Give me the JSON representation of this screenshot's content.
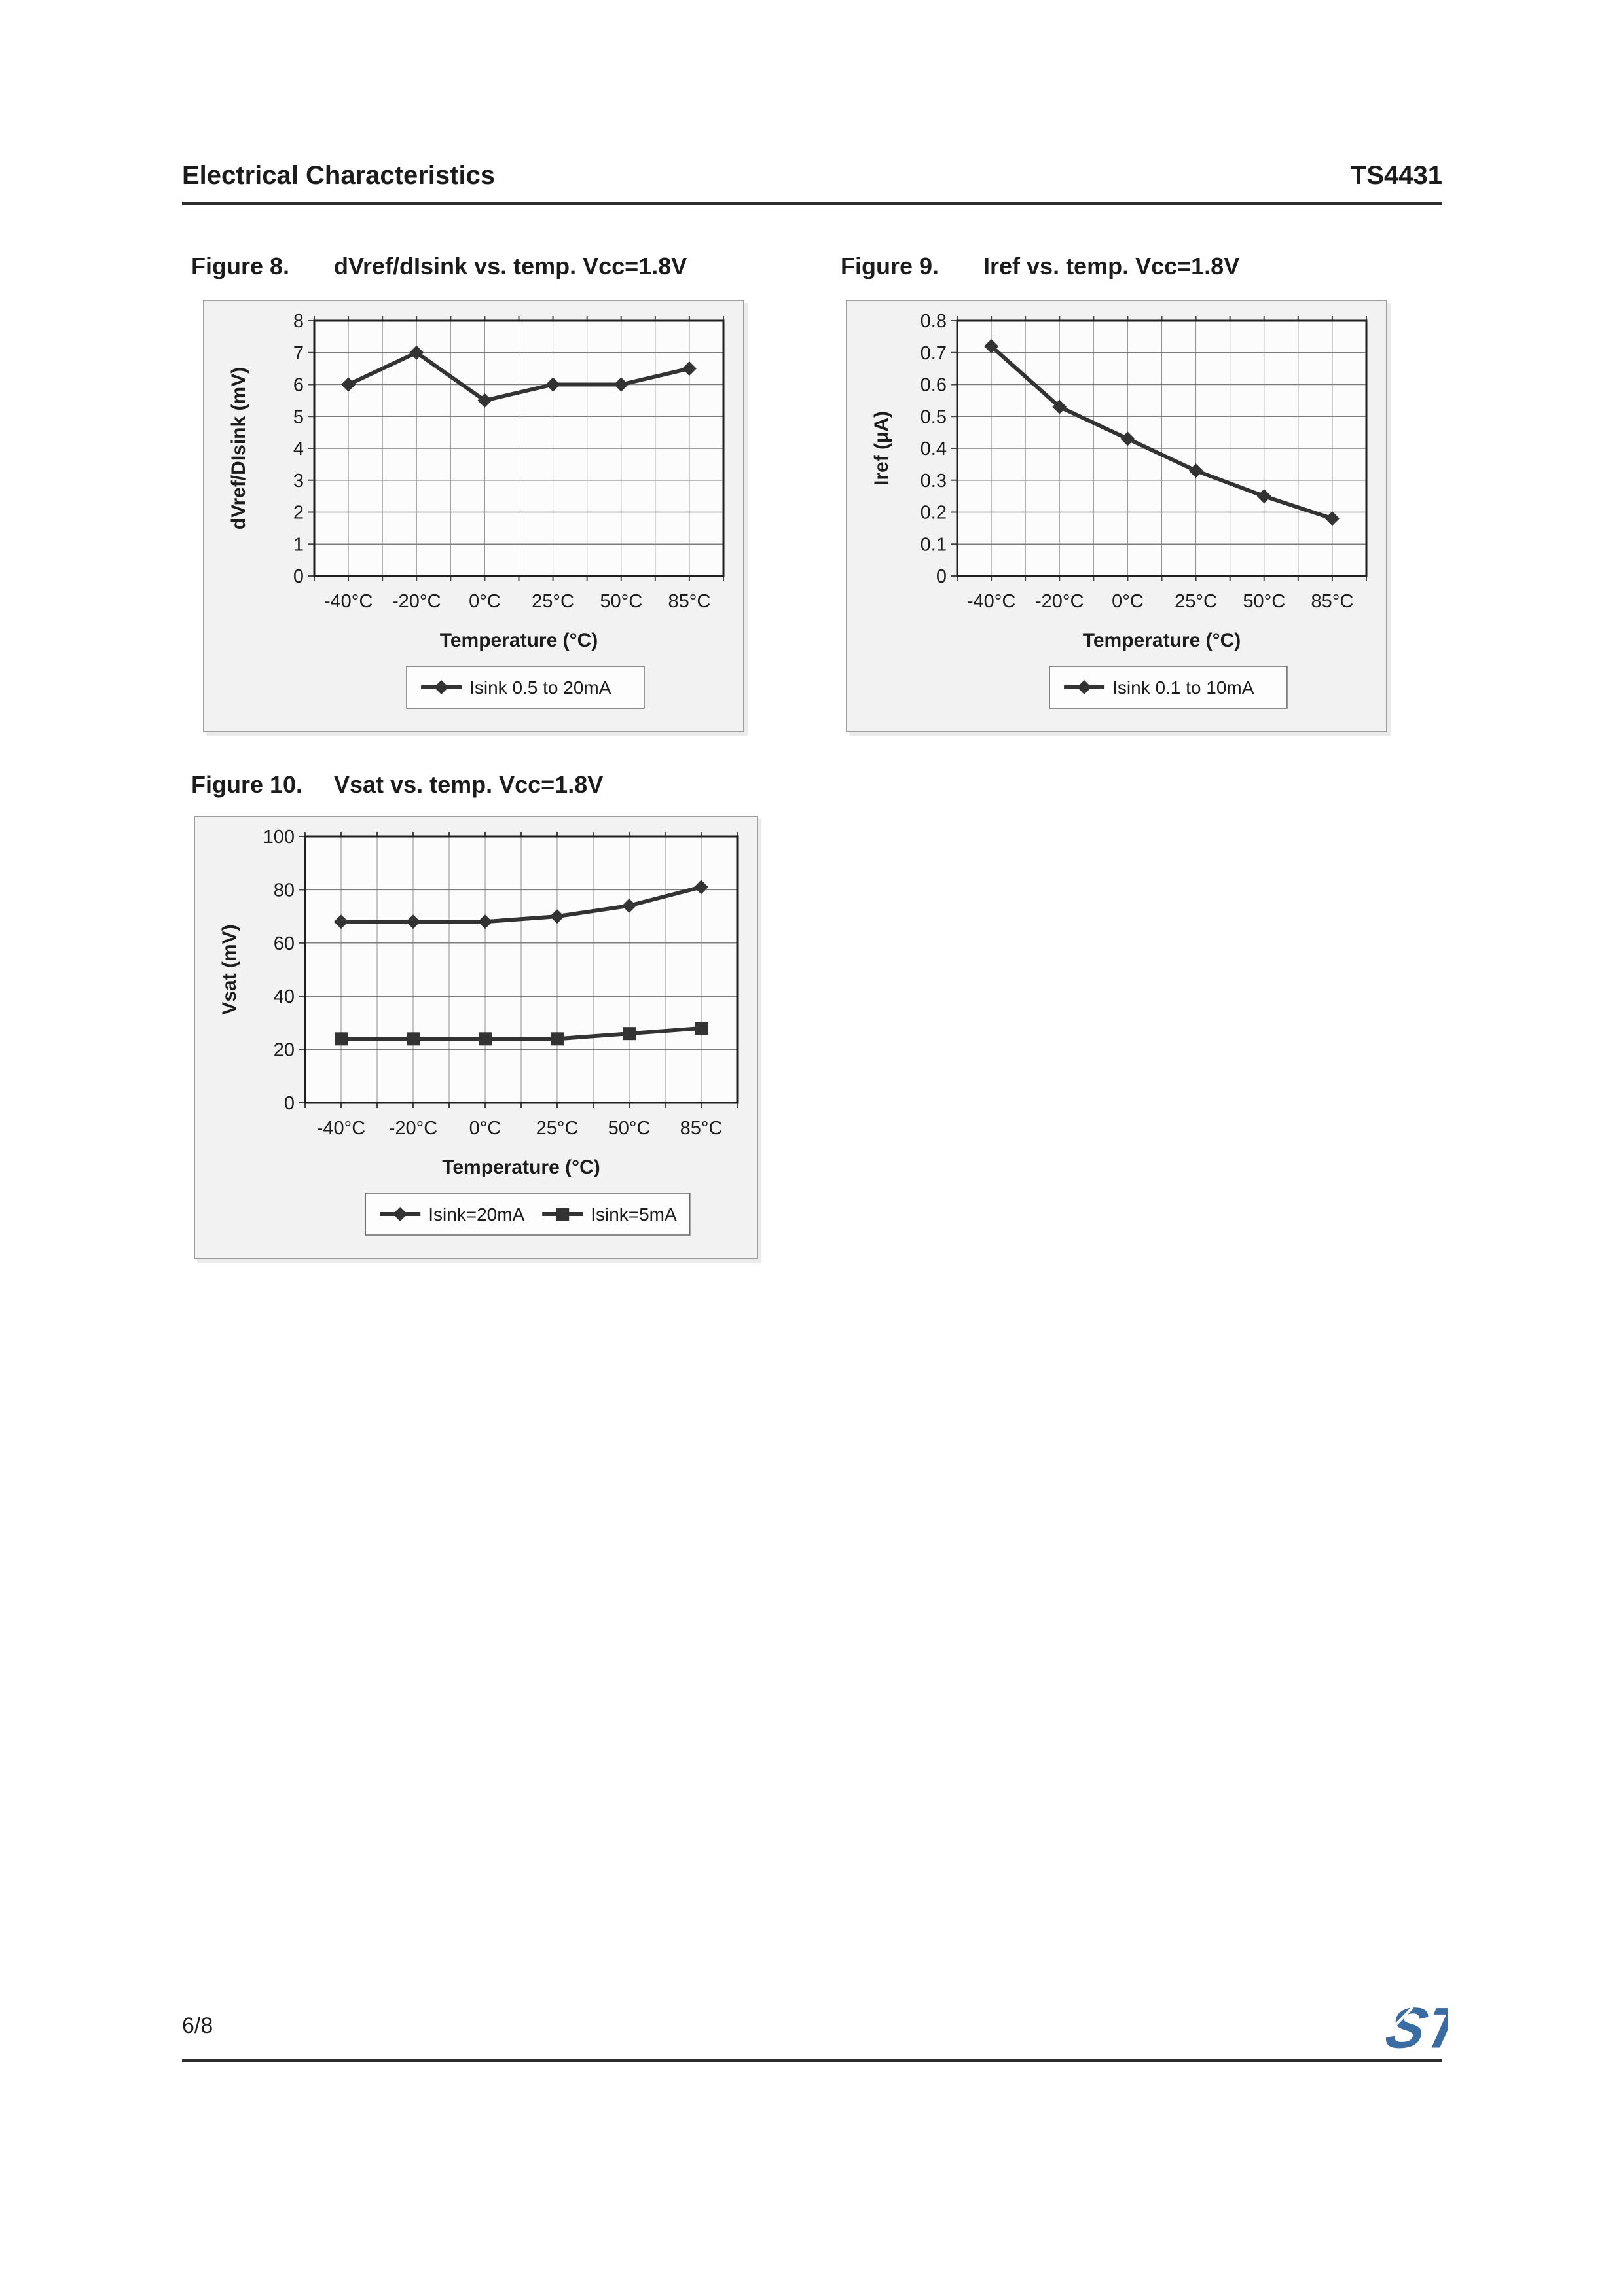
{
  "header": {
    "section": "Electrical Characteristics",
    "part_number": "TS4431"
  },
  "figures": [
    {
      "label": "Figure 8.",
      "title": "dVref/dIsink vs. temp. Vcc=1.8V"
    },
    {
      "label": "Figure 9.",
      "title": "Iref vs. temp. Vcc=1.8V"
    },
    {
      "label": "Figure 10.",
      "title": "Vsat vs. temp. Vcc=1.8V"
    }
  ],
  "chart_data": [
    {
      "type": "line",
      "title": "dVref/dIsink vs. temp. Vcc=1.8V",
      "categories": [
        "-40°C",
        "-20°C",
        "0°C",
        "25°C",
        "50°C",
        "85°C"
      ],
      "series": [
        {
          "name": "Isink 0.5 to 20mA",
          "marker": "diamond",
          "values": [
            6,
            7,
            5.5,
            6,
            6,
            6.5
          ]
        }
      ],
      "xlabel": "Temperature (°C)",
      "ylabel": "dVref/DIsink (mV)",
      "ylim": [
        0,
        8
      ],
      "ytick_values": [
        0,
        1,
        2,
        3,
        4,
        5,
        6,
        7,
        8
      ],
      "ytick_labels": [
        "0",
        "1",
        "2",
        "3",
        "4",
        "5",
        "6",
        "7",
        "8"
      ],
      "grid": true,
      "legend_position": "bottom"
    },
    {
      "type": "line",
      "title": "Iref vs. temp. Vcc=1.8V",
      "categories": [
        "-40°C",
        "-20°C",
        "0°C",
        "25°C",
        "50°C",
        "85°C"
      ],
      "series": [
        {
          "name": "Isink 0.1 to 10mA",
          "marker": "diamond",
          "values": [
            0.72,
            0.53,
            0.43,
            0.33,
            0.25,
            0.18
          ]
        }
      ],
      "xlabel": "Temperature (°C)",
      "ylabel": "Iref (µA)",
      "ylim": [
        0,
        0.8
      ],
      "ytick_values": [
        0,
        0.1,
        0.2,
        0.3,
        0.4,
        0.5,
        0.6,
        0.7,
        0.8
      ],
      "ytick_labels": [
        "0",
        "0.1",
        "0.2",
        "0.3",
        "0.4",
        "0.5",
        "0.6",
        "0.7",
        "0.8"
      ],
      "grid": true,
      "legend_position": "bottom"
    },
    {
      "type": "line",
      "title": "Vsat vs. temp. Vcc=1.8V",
      "categories": [
        "-40°C",
        "-20°C",
        "0°C",
        "25°C",
        "50°C",
        "85°C"
      ],
      "series": [
        {
          "name": "Isink=20mA",
          "marker": "diamond",
          "values": [
            68,
            68,
            68,
            70,
            74,
            81
          ]
        },
        {
          "name": "Isink=5mA",
          "marker": "square",
          "values": [
            24,
            24,
            24,
            24,
            26,
            28
          ]
        }
      ],
      "xlabel": "Temperature (°C)",
      "ylabel": "Vsat (mV)",
      "ylim": [
        0,
        100
      ],
      "ytick_values": [
        0,
        20,
        40,
        60,
        80,
        100
      ],
      "ytick_labels": [
        "0",
        "20",
        "40",
        "60",
        "80",
        "100"
      ],
      "grid": true,
      "legend_position": "bottom"
    }
  ],
  "footer": {
    "page_number": "6/8",
    "logo_text": "ST"
  },
  "colors": {
    "line": "#333333",
    "grid": "#8f8f8f",
    "plot_border": "#1f1f1f",
    "panel_bg": "#f2f2f2",
    "logo_blue": "#3a6ca3",
    "rule": "#2d2d2d"
  }
}
